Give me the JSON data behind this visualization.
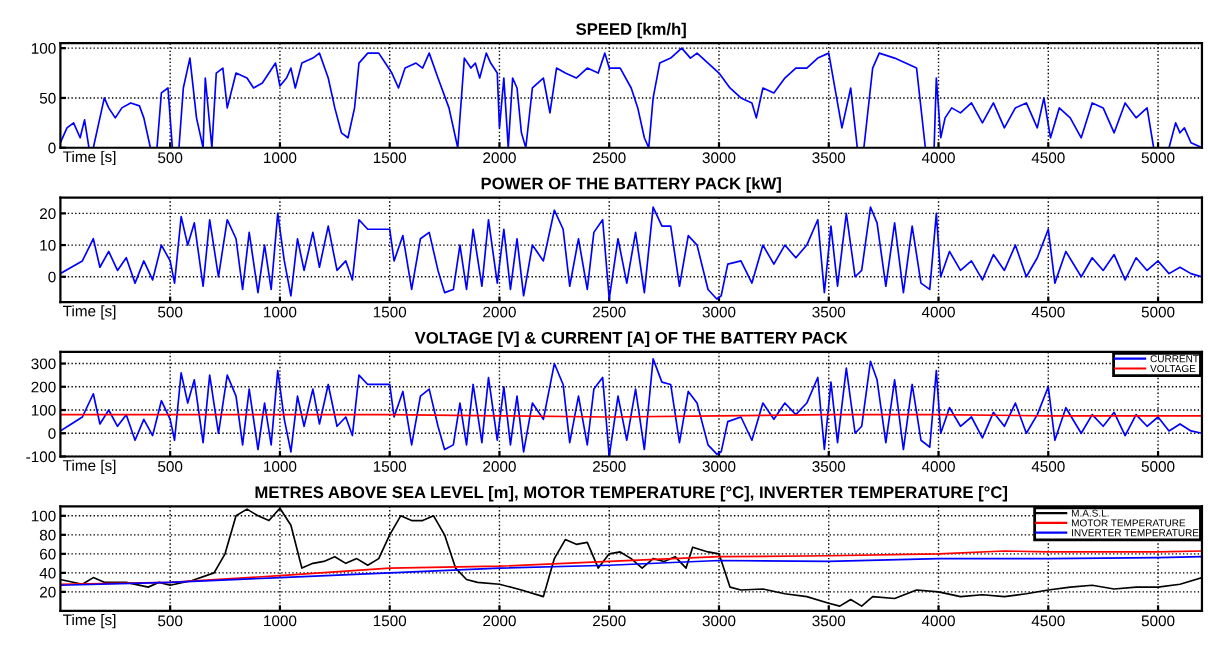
{
  "chart_data": [
    {
      "type": "line",
      "title": "SPEED [km/h]",
      "xlabel": "Time [s]",
      "xlim": [
        0,
        5200
      ],
      "xticks": [
        500,
        1000,
        1500,
        2000,
        2500,
        3000,
        3500,
        4000,
        4500,
        5000
      ],
      "ylim": [
        0,
        105
      ],
      "yticks": [
        0,
        50,
        100
      ],
      "grid": true,
      "legend": false,
      "series": [
        {
          "color": "#0000ff",
          "x": [
            0,
            30,
            60,
            90,
            110,
            130,
            150,
            180,
            200,
            220,
            250,
            280,
            320,
            360,
            380,
            410,
            440,
            460,
            490,
            510,
            540,
            560,
            590,
            620,
            650,
            660,
            690,
            710,
            740,
            760,
            800,
            850,
            880,
            920,
            950,
            980,
            1000,
            1030,
            1050,
            1070,
            1100,
            1150,
            1180,
            1220,
            1250,
            1280,
            1310,
            1340,
            1360,
            1400,
            1450,
            1480,
            1510,
            1540,
            1570,
            1620,
            1650,
            1680,
            1720,
            1770,
            1810,
            1840,
            1870,
            1890,
            1910,
            1940,
            1960,
            1990,
            2000,
            2020,
            2040,
            2060,
            2080,
            2100,
            2120,
            2150,
            2200,
            2230,
            2260,
            2300,
            2350,
            2400,
            2450,
            2480,
            2500,
            2550,
            2600,
            2630,
            2660,
            2680,
            2700,
            2730,
            2780,
            2830,
            2870,
            2900,
            2950,
            3000,
            3050,
            3100,
            3150,
            3170,
            3200,
            3250,
            3300,
            3350,
            3400,
            3450,
            3500,
            3520,
            3560,
            3600,
            3630,
            3660,
            3700,
            3730,
            3800,
            3850,
            3900,
            3940,
            3980,
            3990,
            4010,
            4030,
            4060,
            4100,
            4150,
            4200,
            4250,
            4300,
            4350,
            4400,
            4450,
            4480,
            4510,
            4550,
            4600,
            4650,
            4700,
            4750,
            4800,
            4850,
            4900,
            4950,
            4980,
            5050,
            5080,
            5100,
            5120,
            5150,
            5200
          ],
          "values": [
            5,
            20,
            25,
            10,
            28,
            0,
            0,
            30,
            50,
            40,
            30,
            40,
            45,
            42,
            30,
            0,
            0,
            55,
            60,
            0,
            0,
            60,
            90,
            30,
            0,
            70,
            0,
            75,
            80,
            40,
            75,
            70,
            60,
            65,
            75,
            85,
            62,
            70,
            80,
            60,
            85,
            90,
            95,
            70,
            40,
            15,
            10,
            40,
            85,
            95,
            95,
            85,
            75,
            60,
            80,
            85,
            80,
            95,
            70,
            40,
            0,
            90,
            80,
            85,
            70,
            95,
            85,
            75,
            20,
            70,
            0,
            70,
            60,
            15,
            0,
            60,
            70,
            35,
            80,
            75,
            70,
            80,
            75,
            95,
            80,
            80,
            60,
            40,
            10,
            0,
            50,
            85,
            90,
            100,
            90,
            95,
            85,
            75,
            60,
            50,
            45,
            30,
            60,
            55,
            70,
            80,
            80,
            90,
            95,
            70,
            20,
            60,
            0,
            0,
            80,
            95,
            90,
            85,
            80,
            0,
            0,
            70,
            10,
            30,
            40,
            35,
            45,
            25,
            45,
            20,
            40,
            45,
            20,
            50,
            10,
            40,
            30,
            10,
            45,
            40,
            15,
            45,
            30,
            40,
            0,
            0,
            25,
            15,
            20,
            5,
            0
          ]
        }
      ]
    },
    {
      "type": "line",
      "title": "POWER OF THE BATTERY PACK [kW]",
      "xlabel": "Time [s]",
      "xlim": [
        0,
        5200
      ],
      "xticks": [
        500,
        1000,
        1500,
        2000,
        2500,
        3000,
        3500,
        4000,
        4500,
        5000
      ],
      "ylim": [
        -8,
        25
      ],
      "yticks": [
        0,
        10,
        20
      ],
      "grid": true,
      "legend": false,
      "series": [
        {
          "color": "#0000ff",
          "x": [
            0,
            50,
            100,
            150,
            180,
            220,
            260,
            300,
            340,
            380,
            420,
            460,
            500,
            520,
            550,
            580,
            610,
            650,
            680,
            720,
            760,
            800,
            830,
            860,
            900,
            930,
            960,
            990,
            1020,
            1050,
            1080,
            1110,
            1150,
            1180,
            1220,
            1260,
            1300,
            1330,
            1360,
            1400,
            1450,
            1500,
            1520,
            1560,
            1600,
            1640,
            1680,
            1720,
            1750,
            1790,
            1820,
            1850,
            1880,
            1920,
            1950,
            1990,
            2020,
            2050,
            2080,
            2110,
            2150,
            2200,
            2250,
            2290,
            2320,
            2360,
            2400,
            2430,
            2470,
            2500,
            2540,
            2580,
            2620,
            2660,
            2700,
            2740,
            2780,
            2820,
            2860,
            2900,
            2950,
            2990,
            3010,
            3040,
            3100,
            3150,
            3200,
            3250,
            3300,
            3350,
            3400,
            3450,
            3480,
            3510,
            3540,
            3580,
            3620,
            3650,
            3690,
            3720,
            3760,
            3800,
            3840,
            3880,
            3920,
            3960,
            3990,
            4010,
            4050,
            4100,
            4150,
            4200,
            4250,
            4300,
            4350,
            4400,
            4450,
            4500,
            4530,
            4580,
            4650,
            4700,
            4750,
            4800,
            4850,
            4900,
            4950,
            5000,
            5050,
            5100,
            5150,
            5200
          ],
          "values": [
            1,
            3,
            5,
            12,
            3,
            8,
            2,
            6,
            -2,
            5,
            -1,
            10,
            5,
            -2,
            19,
            10,
            17,
            -3,
            18,
            0,
            18,
            12,
            -4,
            14,
            -5,
            10,
            -4,
            20,
            5,
            -6,
            12,
            2,
            14,
            3,
            16,
            2,
            5,
            -1,
            18,
            15,
            15,
            15,
            5,
            13,
            -4,
            12,
            14,
            2,
            -5,
            -4,
            10,
            -4,
            15,
            -3,
            18,
            -2,
            15,
            -4,
            12,
            -6,
            10,
            5,
            21,
            15,
            -3,
            12,
            -4,
            14,
            18,
            -7,
            12,
            -2,
            14,
            -5,
            22,
            16,
            16,
            -3,
            13,
            10,
            -4,
            -7,
            -6,
            4,
            5,
            -2,
            10,
            4,
            10,
            6,
            10,
            18,
            -5,
            16,
            -3,
            20,
            0,
            2,
            22,
            17,
            -3,
            17,
            -5,
            16,
            -2,
            -4,
            20,
            0,
            8,
            2,
            5,
            -1,
            7,
            2,
            10,
            0,
            6,
            15,
            -2,
            8,
            0,
            6,
            2,
            7,
            -1,
            6,
            2,
            5,
            1,
            3,
            1,
            0
          ]
        }
      ]
    },
    {
      "type": "line",
      "title": "VOLTAGE [V] & CURRENT [A] OF THE BATTERY PACK",
      "xlabel": "Time [s]",
      "xlim": [
        0,
        5200
      ],
      "xticks": [
        500,
        1000,
        1500,
        2000,
        2500,
        3000,
        3500,
        4000,
        4500,
        5000
      ],
      "ylim": [
        -100,
        350
      ],
      "yticks": [
        -100,
        0,
        100,
        200,
        300
      ],
      "grid": true,
      "legend": "top right",
      "series": [
        {
          "name": "CURRENT",
          "color": "#0000ff",
          "x": [
            0,
            50,
            100,
            150,
            180,
            220,
            260,
            300,
            340,
            380,
            420,
            460,
            500,
            520,
            550,
            580,
            610,
            650,
            680,
            720,
            760,
            800,
            830,
            860,
            900,
            930,
            960,
            990,
            1020,
            1050,
            1080,
            1110,
            1150,
            1180,
            1220,
            1260,
            1300,
            1330,
            1360,
            1400,
            1450,
            1500,
            1520,
            1560,
            1600,
            1640,
            1680,
            1720,
            1750,
            1790,
            1820,
            1850,
            1880,
            1920,
            1950,
            1990,
            2020,
            2050,
            2080,
            2110,
            2150,
            2200,
            2250,
            2290,
            2320,
            2360,
            2400,
            2430,
            2470,
            2500,
            2540,
            2580,
            2620,
            2660,
            2700,
            2740,
            2780,
            2820,
            2860,
            2900,
            2950,
            2990,
            3010,
            3040,
            3100,
            3150,
            3200,
            3250,
            3300,
            3350,
            3400,
            3450,
            3480,
            3510,
            3540,
            3580,
            3620,
            3650,
            3690,
            3720,
            3760,
            3800,
            3840,
            3880,
            3920,
            3960,
            3990,
            4010,
            4050,
            4100,
            4150,
            4200,
            4250,
            4300,
            4350,
            4400,
            4450,
            4500,
            4530,
            4580,
            4650,
            4700,
            4750,
            4800,
            4850,
            4900,
            4950,
            5000,
            5050,
            5100,
            5150,
            5200
          ],
          "values": [
            10,
            40,
            70,
            170,
            40,
            100,
            30,
            80,
            -30,
            60,
            -10,
            140,
            60,
            -30,
            260,
            130,
            230,
            -40,
            250,
            0,
            250,
            160,
            -50,
            190,
            -70,
            130,
            -50,
            270,
            60,
            -80,
            160,
            30,
            190,
            40,
            210,
            30,
            70,
            -10,
            250,
            210,
            210,
            210,
            70,
            180,
            -50,
            160,
            190,
            30,
            -70,
            -50,
            130,
            -50,
            210,
            -40,
            240,
            -30,
            200,
            -50,
            160,
            -80,
            130,
            60,
            300,
            210,
            -40,
            160,
            -50,
            190,
            240,
            -100,
            160,
            -30,
            190,
            -70,
            320,
            220,
            210,
            -40,
            180,
            130,
            -50,
            -90,
            -80,
            50,
            70,
            -30,
            130,
            60,
            130,
            80,
            130,
            240,
            -70,
            220,
            -40,
            280,
            0,
            30,
            310,
            230,
            -40,
            230,
            -70,
            210,
            -30,
            -60,
            270,
            0,
            110,
            30,
            70,
            -20,
            90,
            30,
            130,
            0,
            80,
            200,
            -30,
            110,
            0,
            80,
            30,
            90,
            -10,
            80,
            30,
            70,
            10,
            40,
            10,
            0
          ]
        },
        {
          "name": "VOLTAGE",
          "color": "#ff0000",
          "x": [
            0,
            500,
            1000,
            1500,
            2000,
            2500,
            3000,
            3500,
            4000,
            4500,
            5200
          ],
          "values": [
            80,
            80,
            80,
            80,
            75,
            70,
            75,
            80,
            80,
            75,
            75
          ]
        }
      ]
    },
    {
      "type": "line",
      "title": "METRES ABOVE SEA LEVEL [m], MOTOR TEMPERATURE [°C], INVERTER TEMPERATURE [°C]",
      "xlabel": "Time [s]",
      "xlim": [
        0,
        5200
      ],
      "xticks": [
        500,
        1000,
        1500,
        2000,
        2500,
        3000,
        3500,
        4000,
        4500,
        5000
      ],
      "ylim": [
        0,
        110
      ],
      "yticks": [
        20,
        40,
        60,
        80,
        100
      ],
      "grid": true,
      "legend": "top right",
      "series": [
        {
          "name": "M.A.S.L.",
          "color": "#000000",
          "x": [
            0,
            100,
            150,
            200,
            300,
            400,
            450,
            500,
            600,
            700,
            750,
            800,
            850,
            900,
            950,
            1000,
            1050,
            1100,
            1150,
            1200,
            1250,
            1300,
            1350,
            1400,
            1450,
            1500,
            1550,
            1600,
            1650,
            1700,
            1750,
            1800,
            1850,
            1900,
            2000,
            2100,
            2200,
            2250,
            2300,
            2350,
            2400,
            2450,
            2500,
            2550,
            2600,
            2650,
            2700,
            2750,
            2800,
            2850,
            2880,
            2950,
            3000,
            3050,
            3100,
            3200,
            3300,
            3400,
            3500,
            3550,
            3600,
            3650,
            3700,
            3800,
            3900,
            4000,
            4100,
            4200,
            4300,
            4400,
            4500,
            4600,
            4700,
            4800,
            4900,
            5000,
            5100,
            5200
          ],
          "values": [
            33,
            28,
            35,
            30,
            30,
            25,
            30,
            27,
            32,
            40,
            60,
            100,
            107,
            100,
            95,
            108,
            90,
            45,
            50,
            52,
            57,
            50,
            55,
            48,
            55,
            80,
            100,
            95,
            95,
            100,
            80,
            45,
            33,
            30,
            28,
            22,
            15,
            55,
            75,
            70,
            72,
            45,
            60,
            62,
            55,
            45,
            55,
            52,
            57,
            45,
            67,
            62,
            60,
            25,
            22,
            23,
            18,
            15,
            8,
            5,
            12,
            5,
            15,
            13,
            22,
            20,
            15,
            17,
            15,
            18,
            22,
            25,
            27,
            23,
            25,
            25,
            28,
            35
          ]
        },
        {
          "name": "MOTOR TEMPERATURE",
          "color": "#ff0000",
          "x": [
            0,
            500,
            1000,
            1500,
            2000,
            2500,
            3000,
            3500,
            4000,
            4300,
            4500,
            5000,
            5200
          ],
          "values": [
            28,
            30,
            37,
            45,
            47,
            52,
            57,
            58,
            60,
            63,
            62,
            62,
            63
          ]
        },
        {
          "name": "INVERTER TEMPERATURE",
          "color": "#0000ff",
          "x": [
            0,
            500,
            1000,
            1500,
            2000,
            2500,
            3000,
            3500,
            4000,
            4500,
            5000,
            5200
          ],
          "values": [
            27,
            30,
            35,
            40,
            45,
            48,
            53,
            52,
            55,
            55,
            56,
            57
          ]
        }
      ]
    }
  ]
}
